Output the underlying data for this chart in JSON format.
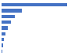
{
  "values": [
    87000,
    27000,
    18000,
    12000,
    8000,
    5000,
    3500,
    2500,
    1500
  ],
  "bar_color": "#4472c4",
  "background_color": "#ffffff",
  "grid_color": "#d9d9d9",
  "xlim": [
    0,
    100000
  ],
  "figsize": [
    1.0,
    0.71
  ],
  "dpi": 100,
  "bar_height": 0.6
}
